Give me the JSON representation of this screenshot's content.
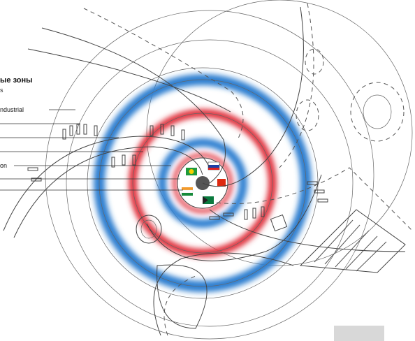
{
  "legend": {
    "title": "ые зоны",
    "subtitle": "s",
    "items": [
      "ndustrial",
      "on"
    ]
  }
}
